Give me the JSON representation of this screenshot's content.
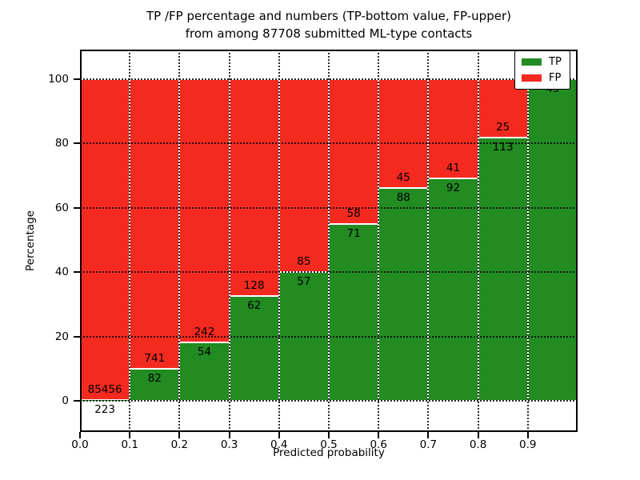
{
  "title": {
    "line1": "TP /FP percentage and numbers (TP-bottom value, FP-upper)",
    "line2": "from among 87708 submitted ML-type contacts"
  },
  "axes": {
    "x_label": "Predicted probability",
    "y_label": "Percentage",
    "x_tick_labels": [
      "0.0",
      "0.1",
      "0.2",
      "0.3",
      "0.4",
      "0.5",
      "0.6",
      "0.7",
      "0.8",
      "0.9"
    ],
    "y_tick_labels": [
      "0",
      "20",
      "40",
      "60",
      "80",
      "100"
    ]
  },
  "legend": {
    "items": [
      {
        "label": "TP",
        "color": "#228b22"
      },
      {
        "label": "FP",
        "color": "#f42a20"
      }
    ]
  },
  "colors": {
    "tp": "#228b22",
    "fp": "#f42a20",
    "bar_edge": "#ffffff",
    "grid": "#000000",
    "background": "#ffffff",
    "text": "#000000"
  },
  "chart_data": {
    "type": "bar",
    "stacked": true,
    "title": "TP /FP percentage and numbers (TP-bottom value, FP-upper) from among 87708 submitted ML-type contacts",
    "xlabel": "Predicted probability",
    "ylabel": "Percentage",
    "total_submitted": 87708,
    "bin_width": 0.1,
    "bin_starts": [
      0.0,
      0.1,
      0.2,
      0.3,
      0.4,
      0.5,
      0.6,
      0.7,
      0.8,
      0.9
    ],
    "series": [
      {
        "name": "TP",
        "color": "#228b22",
        "counts": [
          223,
          82,
          54,
          62,
          57,
          71,
          88,
          92,
          113,
          45
        ],
        "percent": [
          0.26,
          9.96,
          18.24,
          32.63,
          40.14,
          55.04,
          66.17,
          69.17,
          81.88,
          100.0
        ]
      },
      {
        "name": "FP",
        "color": "#f42a20",
        "counts": [
          85456,
          741,
          242,
          128,
          85,
          58,
          45,
          41,
          25,
          0
        ],
        "percent": [
          99.74,
          90.04,
          81.76,
          67.37,
          59.86,
          44.96,
          33.83,
          30.83,
          18.12,
          0.0
        ]
      }
    ],
    "yticks": [
      0,
      20,
      40,
      60,
      80,
      100
    ],
    "ylim_display": [
      -9.7,
      109.2
    ],
    "grid": "dotted, drawn above bars",
    "legend_position": "upper right",
    "annotation_rule": "TP count labeled below segment boundary, FP count labeled above boundary"
  }
}
